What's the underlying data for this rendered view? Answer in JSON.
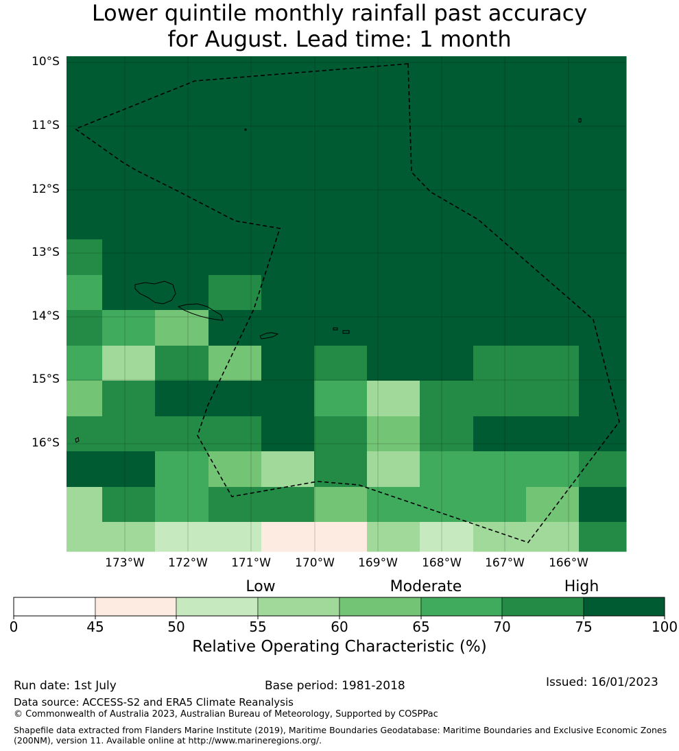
{
  "title": {
    "line1": "Lower quintile monthly rainfall past accuracy",
    "line2": "for August. Lead time: 1 month"
  },
  "map": {
    "lat_labels": [
      "10°S",
      "11°S",
      "12°S",
      "13°S",
      "14°S",
      "15°S",
      "16°S"
    ],
    "lon_labels": [
      "173°W",
      "172°W",
      "171°W",
      "170°W",
      "169°W",
      "168°W",
      "167°W",
      "166°W"
    ],
    "extent": {
      "lon_min": -173.9,
      "lon_max": -165.1,
      "lat_max": -9.9,
      "lat_min": -17.7
    },
    "grid_rows": [
      [
        75,
        75,
        75,
        75,
        75,
        75,
        75,
        75,
        75,
        75,
        75
      ],
      [
        75,
        75,
        75,
        75,
        75,
        75,
        75,
        75,
        75,
        75,
        75
      ],
      [
        75,
        75,
        75,
        75,
        75,
        75,
        75,
        75,
        75,
        75,
        75
      ],
      [
        75,
        75,
        75,
        75,
        75,
        75,
        75,
        75,
        75,
        75,
        75
      ],
      [
        75,
        75,
        75,
        75,
        75,
        75,
        75,
        75,
        75,
        75,
        75
      ],
      [
        70,
        75,
        75,
        75,
        75,
        75,
        75,
        75,
        75,
        75,
        75
      ],
      [
        65,
        75,
        75,
        70,
        75,
        75,
        75,
        75,
        75,
        75,
        75
      ],
      [
        70,
        65,
        60,
        75,
        75,
        75,
        75,
        75,
        75,
        75,
        75
      ],
      [
        65,
        55,
        70,
        60,
        75,
        70,
        75,
        75,
        70,
        70,
        75
      ],
      [
        60,
        70,
        75,
        75,
        75,
        65,
        55,
        70,
        70,
        70,
        75
      ],
      [
        70,
        70,
        70,
        70,
        75,
        70,
        60,
        70,
        75,
        75,
        75
      ],
      [
        75,
        75,
        65,
        60,
        55,
        70,
        55,
        65,
        65,
        65,
        70
      ],
      [
        55,
        70,
        65,
        70,
        70,
        60,
        65,
        65,
        65,
        60,
        75
      ],
      [
        55,
        55,
        50,
        50,
        45,
        45,
        55,
        50,
        55,
        55,
        70
      ]
    ],
    "islands": [
      "Savai'i",
      "Upolu",
      "Tutuila",
      "Manu'a"
    ],
    "boundary_style": "dashed"
  },
  "colorbar": {
    "ticks": [
      "0",
      "45",
      "50",
      "55",
      "60",
      "65",
      "70",
      "75",
      "100"
    ],
    "colors": [
      "#ffffff",
      "#fdeae0",
      "#c7e9c0",
      "#a1d99b",
      "#74c476",
      "#41ab5d",
      "#238b45",
      "#005a32"
    ],
    "category_labels": [
      {
        "label": "Low",
        "value": 55
      },
      {
        "label": "Moderate",
        "value": 65
      },
      {
        "label": "High",
        "value": 75
      }
    ],
    "title": "Relative Operating Characteristic (%)"
  },
  "footer": {
    "run_date": "Run date: 1st July",
    "base_period": "Base period: 1981-2018",
    "issued": "Issued: 16/01/2023",
    "data_source": "Data source: ACCESS-S2 and ERA5 Climate Reanalysis",
    "copyright": "© Commonwealth of Australia 2023, Australian Bureau of Meteorology, Supported by COSPPac",
    "shapefile_line1": "Shapefile data extracted from Flanders Marine Institute (2019), Maritime Boundaries Geodatabase: Maritime Boundaries and Exclusive Economic Zones",
    "shapefile_line2": "(200NM), version 11. Available online at http://www.marineregions.org/."
  }
}
